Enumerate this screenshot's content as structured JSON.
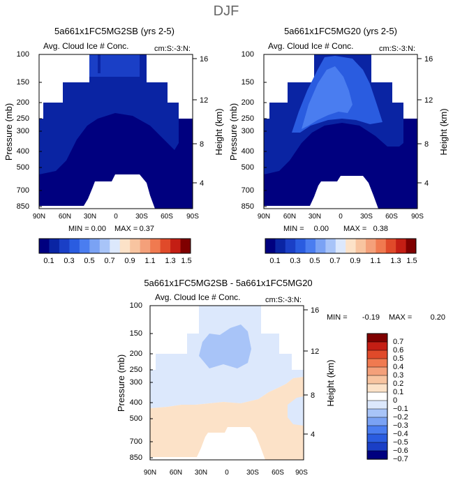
{
  "page_title": "DJF",
  "chart_data": [
    {
      "type": "heatmap",
      "title": "5a661x1FC5MG2SB (yrs 2-5)",
      "subtitle": "Avg. Cloud Ice # Conc.",
      "units": "cm:S:-3:N:",
      "xlabel": "",
      "ylabel": "Pressure (mb)",
      "ylabel_right": "Height (km)",
      "x_ticks": [
        "90N",
        "60N",
        "30N",
        "0",
        "30S",
        "60S",
        "90S"
      ],
      "y_ticks": [
        "100",
        "150",
        "200",
        "250",
        "300",
        "400",
        "500",
        "700",
        "850"
      ],
      "y_ticks_right": [
        "16",
        "12",
        "8",
        "4"
      ],
      "min_label": "MIN =",
      "min_value": "0.00",
      "max_label": "MAX =",
      "max_value": "0.37",
      "contour_levels": [
        0.1,
        0.2,
        0.3,
        0.4,
        0.5,
        0.6,
        0.7,
        0.8,
        0.9,
        1.0,
        1.1,
        1.2,
        1.3,
        1.4,
        1.5
      ],
      "colorbar_labels": [
        "0.1",
        "0.3",
        "0.5",
        "0.7",
        "0.9",
        "1.1",
        "1.3",
        "1.5"
      ]
    },
    {
      "type": "heatmap",
      "title": "5a661x1FC5MG20 (yrs 2-5)",
      "subtitle": "Avg. Cloud Ice # Conc.",
      "units": "cm:S:-3:N:",
      "xlabel": "",
      "ylabel": "Pressure (mb)",
      "ylabel_right": "Height (km)",
      "x_ticks": [
        "90N",
        "60N",
        "30N",
        "0",
        "30S",
        "60S",
        "90S"
      ],
      "y_ticks": [
        "100",
        "150",
        "200",
        "250",
        "300",
        "400",
        "500",
        "700",
        "850"
      ],
      "y_ticks_right": [
        "16",
        "12",
        "8",
        "4"
      ],
      "min_label": "MIN =",
      "min_value": "0.00",
      "max_label": "MAX =",
      "max_value": "0.38",
      "contour_levels": [
        0.1,
        0.2,
        0.3,
        0.4,
        0.5,
        0.6,
        0.7,
        0.8,
        0.9,
        1.0,
        1.1,
        1.2,
        1.3,
        1.4,
        1.5
      ],
      "colorbar_labels": [
        "0.1",
        "0.3",
        "0.5",
        "0.7",
        "0.9",
        "1.1",
        "1.3",
        "1.5"
      ]
    },
    {
      "type": "heatmap",
      "title": "5a661x1FC5MG2SB - 5a661x1FC5MG20",
      "subtitle": "Avg. Cloud Ice # Conc.",
      "units": "cm:S:-3:N:",
      "xlabel": "",
      "ylabel": "Pressure (mb)",
      "ylabel_right": "Height (km)",
      "x_ticks": [
        "90N",
        "60N",
        "30N",
        "0",
        "30S",
        "60S",
        "90S"
      ],
      "y_ticks": [
        "100",
        "150",
        "200",
        "250",
        "300",
        "400",
        "500",
        "700",
        "850"
      ],
      "y_ticks_right": [
        "16",
        "12",
        "8",
        "4"
      ],
      "min_label": "MIN =",
      "min_value": "-0.19",
      "max_label": "MAX =",
      "max_value": "0.20",
      "contour_levels": [
        -0.7,
        -0.6,
        -0.5,
        -0.4,
        -0.3,
        -0.2,
        -0.1,
        0,
        0.1,
        0.2,
        0.3,
        0.4,
        0.5,
        0.6,
        0.7
      ],
      "colorbar_labels": [
        "0.7",
        "0.6",
        "0.5",
        "0.4",
        "0.3",
        "0.2",
        "0.1",
        "0",
        "−0.1",
        "−0.2",
        "−0.3",
        "−0.4",
        "−0.5",
        "−0.6",
        "−0.7"
      ]
    }
  ],
  "colors": {
    "abs_scale": [
      "#00007f",
      "#0a24a3",
      "#1a3fc6",
      "#2a5ce0",
      "#4a7df0",
      "#7aa2f4",
      "#a8c4f8",
      "#dce8fc",
      "#fce2c8",
      "#f8c4a0",
      "#f4a07a",
      "#f07a50",
      "#e04a2a",
      "#c41e14",
      "#7f0000"
    ],
    "diff_scale": [
      "#7f0000",
      "#c41e14",
      "#e04a2a",
      "#f07a50",
      "#f4a07a",
      "#f8c4a0",
      "#fce2c8",
      "#ffffff",
      "#dce8fc",
      "#a8c4f8",
      "#7aa2f4",
      "#4a7df0",
      "#2a5ce0",
      "#1a3fc6",
      "#00007f"
    ]
  }
}
